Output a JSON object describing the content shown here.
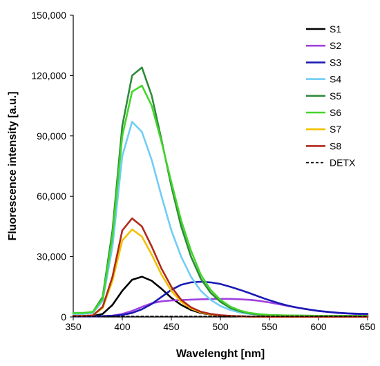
{
  "chart_data": {
    "type": "line",
    "xlabel": "Wavelenght [nm]",
    "ylabel": "Fluorescence intensity  [a.u.]",
    "xlim": [
      350,
      650
    ],
    "ylim": [
      0,
      150000
    ],
    "x_ticks": [
      350,
      400,
      450,
      500,
      550,
      600,
      650
    ],
    "x_tick_labels": [
      "350",
      "400",
      "450",
      "500",
      "550",
      "600",
      "650"
    ],
    "y_ticks": [
      0,
      30000,
      60000,
      90000,
      120000,
      150000
    ],
    "y_tick_labels": [
      "0",
      "30,000",
      "60,000",
      "90,000",
      "120,000",
      "150,000"
    ],
    "grid": false,
    "legend_position": "top-right",
    "x": [
      350,
      360,
      370,
      380,
      390,
      400,
      410,
      420,
      430,
      440,
      450,
      460,
      470,
      480,
      490,
      500,
      510,
      520,
      530,
      540,
      550,
      560,
      570,
      580,
      590,
      600,
      610,
      620,
      630,
      640,
      650
    ],
    "series": [
      {
        "name": "S1",
        "color": "#000000",
        "style": "solid",
        "values": [
          400,
          400,
          500,
          1500,
          6000,
          13000,
          18500,
          20000,
          18000,
          14000,
          9500,
          6000,
          3500,
          2000,
          1200,
          700,
          400,
          300,
          200,
          150,
          100,
          100,
          100,
          100,
          100,
          100,
          100,
          100,
          100,
          100,
          100
        ]
      },
      {
        "name": "S2",
        "color": "#a040e0",
        "style": "solid",
        "values": [
          300,
          300,
          300,
          400,
          700,
          1500,
          3000,
          5000,
          6800,
          7800,
          8200,
          8400,
          8600,
          8800,
          8900,
          9000,
          9000,
          8800,
          8500,
          8000,
          7200,
          6300,
          5400,
          4500,
          3700,
          3000,
          2500,
          2000,
          1700,
          1400,
          1200
        ]
      },
      {
        "name": "S3",
        "color": "#1a1ab4",
        "style": "solid",
        "values": [
          300,
          300,
          300,
          400,
          600,
          1000,
          2000,
          3800,
          6500,
          10000,
          13500,
          16000,
          17200,
          17500,
          17200,
          16400,
          15000,
          13500,
          11800,
          10000,
          8300,
          6800,
          5500,
          4500,
          3700,
          3000,
          2500,
          2100,
          1800,
          1600,
          1500
        ]
      },
      {
        "name": "S4",
        "color": "#6fcdf5",
        "style": "solid",
        "values": [
          1500,
          1500,
          2000,
          8000,
          35000,
          80000,
          97000,
          92000,
          78000,
          60000,
          43000,
          30000,
          20000,
          13000,
          8500,
          5500,
          3500,
          2200,
          1500,
          1100,
          900,
          800,
          700,
          650,
          600,
          600,
          600,
          600,
          600,
          600,
          600
        ]
      },
      {
        "name": "S5",
        "color": "#2e8b3a",
        "style": "solid",
        "values": [
          2000,
          2000,
          2500,
          10000,
          43000,
          95000,
          120000,
          124000,
          110000,
          88000,
          65000,
          45000,
          30000,
          19000,
          12000,
          7500,
          4500,
          2800,
          1800,
          1200,
          900,
          800,
          700,
          650,
          600,
          600,
          600,
          600,
          600,
          600,
          600
        ]
      },
      {
        "name": "S6",
        "color": "#44d62c",
        "style": "solid",
        "values": [
          2000,
          2000,
          2500,
          9000,
          40000,
          90000,
          112000,
          115000,
          105000,
          87000,
          67000,
          48000,
          33000,
          21000,
          13500,
          8500,
          5200,
          3200,
          2000,
          1400,
          1000,
          850,
          750,
          700,
          650,
          600,
          600,
          600,
          600,
          600,
          600
        ]
      },
      {
        "name": "S7",
        "color": "#f2c000",
        "style": "solid",
        "values": [
          500,
          500,
          800,
          4500,
          18000,
          38000,
          43500,
          40000,
          31000,
          21000,
          13000,
          7500,
          4200,
          2300,
          1300,
          800,
          500,
          350,
          250,
          200,
          150,
          150,
          150,
          150,
          150,
          150,
          150,
          150,
          150,
          150,
          150
        ]
      },
      {
        "name": "S8",
        "color": "#b02a1a",
        "style": "solid",
        "values": [
          500,
          500,
          800,
          5000,
          20000,
          43000,
          49000,
          45000,
          35000,
          24000,
          15000,
          8500,
          4800,
          2600,
          1500,
          900,
          550,
          350,
          250,
          200,
          150,
          150,
          150,
          150,
          150,
          150,
          150,
          150,
          150,
          150,
          150
        ]
      },
      {
        "name": "DETX",
        "color": "#000000",
        "style": "dashed",
        "values": [
          300,
          300,
          300,
          300,
          300,
          300,
          300,
          300,
          300,
          300,
          300,
          300,
          300,
          300,
          300,
          300,
          300,
          300,
          300,
          300,
          300,
          300,
          300,
          300,
          300,
          300,
          300,
          300,
          300,
          300,
          300
        ]
      }
    ]
  }
}
